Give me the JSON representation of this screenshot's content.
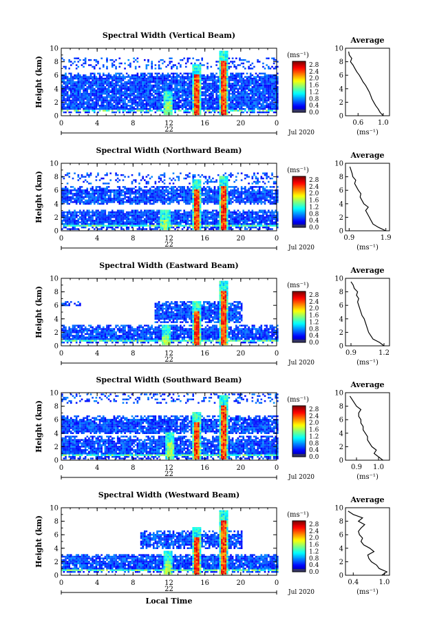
{
  "chart_data": [
    {
      "type": "heatmap",
      "title": "Spectral Width (Vertical Beam)",
      "ylabel": "Height (km)",
      "xlabel": "",
      "ylim": [
        0,
        10
      ],
      "xlim": [
        0,
        24
      ],
      "x_ticks": [
        "0",
        "4",
        "8",
        "12",
        "16",
        "20",
        "0"
      ],
      "y_ticks": [
        "0",
        "2",
        "4",
        "6",
        "8",
        "10"
      ],
      "date_label": "22",
      "month_label": "Jul 2020",
      "colorbar": {
        "unit": "(ms⁻¹)",
        "ticks": [
          "0.0",
          "0.4",
          "0.8",
          "1.2",
          "1.6",
          "2.0",
          "2.4",
          "2.8"
        ],
        "range": [
          0,
          3.0
        ]
      },
      "layers": [
        {
          "lo": 0.5,
          "hi": 6.3,
          "start": 0,
          "end": 24
        },
        {
          "lo": 6.8,
          "hi": 8.5,
          "start": 0,
          "end": 24,
          "sparse": true
        }
      ],
      "plumes": [
        {
          "x": 11.8,
          "top": 3.5,
          "peak": 1.8
        },
        {
          "x": 15.0,
          "top": 7.5,
          "peak": 2.8
        },
        {
          "x": 18.0,
          "top": 9.5,
          "peak": 2.8
        }
      ],
      "average_profile": {
        "title": "Average",
        "xlabel": "(ms⁻¹)",
        "x_ticks": [
          "0.6",
          "1.0"
        ],
        "xlim": [
          0.4,
          1.1
        ],
        "height": [
          0.0,
          0.5,
          1.0,
          1.5,
          2.0,
          2.5,
          3.0,
          3.5,
          4.0,
          4.5,
          5.0,
          5.5,
          6.0,
          6.5,
          7.0,
          7.5,
          8.0,
          8.5,
          9.0,
          9.5
        ],
        "values": [
          1.0,
          0.95,
          0.92,
          0.88,
          0.85,
          0.82,
          0.8,
          0.78,
          0.75,
          0.72,
          0.68,
          0.65,
          0.62,
          0.58,
          0.55,
          0.52,
          0.48,
          0.5,
          0.46,
          0.45
        ]
      }
    },
    {
      "type": "heatmap",
      "title": "Spectral Width (Northward Beam)",
      "ylabel": "Height (km)",
      "xlabel": "",
      "ylim": [
        0,
        10
      ],
      "xlim": [
        0,
        24
      ],
      "x_ticks": [
        "0",
        "4",
        "8",
        "12",
        "16",
        "20",
        "0"
      ],
      "y_ticks": [
        "0",
        "2",
        "4",
        "6",
        "8",
        "10"
      ],
      "date_label": "22",
      "month_label": "Jul 2020",
      "colorbar": {
        "unit": "(ms⁻¹)",
        "ticks": [
          "0.0",
          "0.4",
          "0.8",
          "1.2",
          "1.6",
          "2.0",
          "2.4",
          "2.8"
        ],
        "range": [
          0,
          3.0
        ]
      },
      "layers": [
        {
          "lo": 0.2,
          "hi": 3.2,
          "start": 0,
          "end": 24
        },
        {
          "lo": 3.8,
          "hi": 6.6,
          "start": 0,
          "end": 24
        },
        {
          "lo": 7.0,
          "hi": 8.5,
          "start": 0,
          "end": 24,
          "sparse": true
        }
      ],
      "plumes": [
        {
          "x": 11.5,
          "top": 3.0,
          "peak": 1.8
        },
        {
          "x": 15.0,
          "top": 7.5,
          "peak": 2.8
        },
        {
          "x": 18.0,
          "top": 8.0,
          "peak": 2.8
        }
      ],
      "average_profile": {
        "title": "Average",
        "xlabel": "(ms⁻¹)",
        "x_ticks": [
          "0.9",
          "1.9"
        ],
        "xlim": [
          0.8,
          2.0
        ],
        "height": [
          0.0,
          0.5,
          1.0,
          1.5,
          2.0,
          2.5,
          3.0,
          3.5,
          4.0,
          4.5,
          5.0,
          5.5,
          6.0,
          6.5,
          7.0,
          7.5,
          8.0,
          8.5,
          9.0,
          9.5
        ],
        "values": [
          1.9,
          1.7,
          1.55,
          1.5,
          1.45,
          1.4,
          1.35,
          1.42,
          1.3,
          1.25,
          1.2,
          1.22,
          1.15,
          1.1,
          1.05,
          1.08,
          1.0,
          0.98,
          0.95,
          0.92
        ]
      }
    },
    {
      "type": "heatmap",
      "title": "Spectral Width (Eastward Beam)",
      "ylabel": "Height (km)",
      "xlabel": "",
      "ylim": [
        0,
        10
      ],
      "xlim": [
        0,
        24
      ],
      "x_ticks": [
        "0",
        "4",
        "8",
        "12",
        "16",
        "20",
        "0"
      ],
      "y_ticks": [
        "0",
        "2",
        "4",
        "6",
        "8",
        "10"
      ],
      "date_label": "22",
      "month_label": "Jul 2020",
      "colorbar": {
        "unit": "(ms⁻¹)",
        "ticks": [
          "0.0",
          "0.4",
          "0.8",
          "1.2",
          "1.6",
          "2.0",
          "2.4",
          "2.8"
        ],
        "range": [
          0,
          3.0
        ]
      },
      "layers": [
        {
          "lo": 0.3,
          "hi": 3.0,
          "start": 0,
          "end": 24
        },
        {
          "lo": 3.5,
          "hi": 6.6,
          "start": 10.3,
          "end": 20.0
        },
        {
          "lo": 5.8,
          "hi": 6.6,
          "start": 0,
          "end": 2.0
        }
      ],
      "plumes": [
        {
          "x": 11.6,
          "top": 3.0,
          "peak": 1.8
        },
        {
          "x": 15.0,
          "top": 6.5,
          "peak": 2.8
        },
        {
          "x": 18.0,
          "top": 9.5,
          "peak": 2.8
        }
      ],
      "average_profile": {
        "title": "Average",
        "xlabel": "(ms⁻¹)",
        "x_ticks": [
          "0.9",
          "1.2"
        ],
        "xlim": [
          0.85,
          1.25
        ],
        "height": [
          0.0,
          0.5,
          1.0,
          1.5,
          2.0,
          2.5,
          3.0,
          3.5,
          4.0,
          4.5,
          5.0,
          5.5,
          6.0,
          6.5,
          7.0,
          7.5,
          8.0,
          8.5,
          9.0,
          9.5
        ],
        "values": [
          1.2,
          1.16,
          1.1,
          1.08,
          1.06,
          1.05,
          1.04,
          1.03,
          1.02,
          1.0,
          0.99,
          0.98,
          0.97,
          0.96,
          0.97,
          0.95,
          0.96,
          0.93,
          0.92,
          0.9
        ]
      }
    },
    {
      "type": "heatmap",
      "title": "Spectral Width (Southward Beam)",
      "ylabel": "Height (km)",
      "xlabel": "",
      "ylim": [
        0,
        10
      ],
      "xlim": [
        0,
        24
      ],
      "x_ticks": [
        "0",
        "4",
        "8",
        "12",
        "16",
        "20",
        "0"
      ],
      "y_ticks": [
        "0",
        "2",
        "4",
        "6",
        "8",
        "10"
      ],
      "date_label": "22",
      "month_label": "Jul 2020",
      "colorbar": {
        "unit": "(ms⁻¹)",
        "ticks": [
          "0.0",
          "0.4",
          "0.8",
          "1.2",
          "1.6",
          "2.0",
          "2.4",
          "2.8"
        ],
        "range": [
          0,
          3.0
        ]
      },
      "layers": [
        {
          "lo": 0.2,
          "hi": 3.5,
          "start": 0,
          "end": 24
        },
        {
          "lo": 3.8,
          "hi": 6.6,
          "start": 0,
          "end": 24
        },
        {
          "lo": 8.5,
          "hi": 9.8,
          "start": 0,
          "end": 24,
          "sparse": true
        }
      ],
      "plumes": [
        {
          "x": 12.0,
          "top": 4.0,
          "peak": 1.8
        },
        {
          "x": 15.0,
          "top": 7.0,
          "peak": 2.8
        },
        {
          "x": 18.0,
          "top": 9.5,
          "peak": 2.8
        }
      ],
      "average_profile": {
        "title": "Average",
        "xlabel": "(ms⁻¹)",
        "x_ticks": [
          "0.9",
          "1.0"
        ],
        "xlim": [
          0.85,
          1.05
        ],
        "height": [
          0.0,
          0.5,
          1.0,
          1.5,
          2.0,
          2.5,
          3.0,
          3.5,
          4.0,
          4.5,
          5.0,
          5.5,
          6.0,
          6.5,
          7.0,
          7.5,
          8.0,
          8.5,
          9.0,
          9.5
        ],
        "values": [
          1.02,
          1.0,
          0.98,
          0.99,
          0.97,
          0.96,
          0.95,
          0.95,
          0.94,
          0.93,
          0.93,
          0.92,
          0.92,
          0.91,
          0.91,
          0.92,
          0.9,
          0.89,
          0.88,
          0.87
        ]
      }
    },
    {
      "type": "heatmap",
      "title": "Spectral Width (Westward Beam)",
      "ylabel": "Height (km)",
      "xlabel": "Local Time",
      "ylim": [
        0,
        10
      ],
      "xlim": [
        0,
        24
      ],
      "x_ticks": [
        "0",
        "4",
        "8",
        "12",
        "16",
        "20",
        "0"
      ],
      "y_ticks": [
        "0",
        "2",
        "4",
        "6",
        "8",
        "10"
      ],
      "date_label": "22",
      "month_label": "Jul 2020",
      "colorbar": {
        "unit": "(ms⁻¹)",
        "ticks": [
          "0.0",
          "0.4",
          "0.8",
          "1.2",
          "1.6",
          "2.0",
          "2.4",
          "2.8"
        ],
        "range": [
          0,
          3.0
        ]
      },
      "layers": [
        {
          "lo": 0.3,
          "hi": 3.2,
          "start": 0,
          "end": 24
        },
        {
          "lo": 4.0,
          "hi": 6.6,
          "start": 8.7,
          "end": 20.0
        }
      ],
      "plumes": [
        {
          "x": 11.8,
          "top": 3.5,
          "peak": 1.8
        },
        {
          "x": 15.0,
          "top": 7.0,
          "peak": 2.8
        },
        {
          "x": 18.0,
          "top": 9.5,
          "peak": 2.8
        }
      ],
      "average_profile": {
        "title": "Average",
        "xlabel": "(ms⁻¹)",
        "x_ticks": [
          "0.4",
          "1.0"
        ],
        "xlim": [
          0.25,
          1.1
        ],
        "height": [
          0.0,
          0.5,
          1.0,
          1.5,
          2.0,
          2.5,
          3.0,
          3.5,
          4.0,
          4.5,
          5.0,
          5.5,
          6.0,
          6.5,
          7.0,
          7.5,
          8.0,
          8.5,
          9.0,
          9.5
        ],
        "values": [
          0.95,
          1.05,
          0.9,
          0.85,
          0.75,
          0.7,
          0.68,
          0.8,
          0.72,
          0.6,
          0.55,
          0.58,
          0.52,
          0.5,
          0.55,
          0.62,
          0.5,
          0.58,
          0.4,
          0.3
        ]
      }
    }
  ]
}
